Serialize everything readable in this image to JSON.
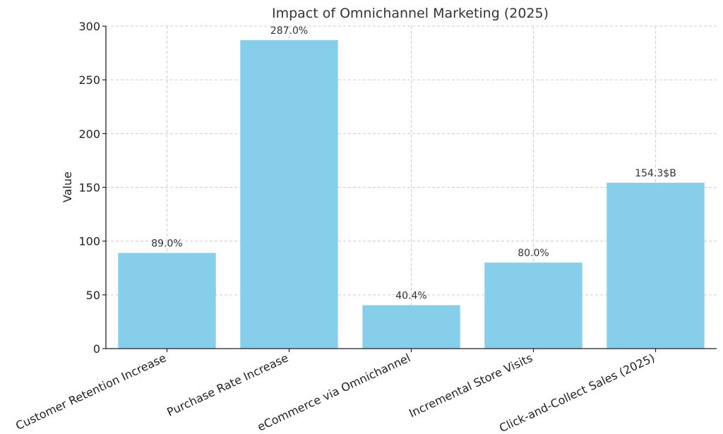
{
  "chart_data": {
    "type": "bar",
    "title": "Impact of Omnichannel Marketing (2025)",
    "xlabel": "",
    "ylabel": "Value",
    "ylim": [
      0,
      300
    ],
    "yticks": [
      0,
      50,
      100,
      150,
      200,
      250,
      300
    ],
    "grid": true,
    "categories": [
      "Customer Retention Increase",
      "Purchase Rate Increase",
      "eCommerce via Omnichannel",
      "Incremental Store Visits",
      "Click-and-Collect Sales (2025)"
    ],
    "values": [
      89.0,
      287.0,
      40.4,
      80.0,
      154.3
    ],
    "data_labels": [
      "89.0%",
      "287.0%",
      "40.4%",
      "80.0%",
      "154.3$B"
    ],
    "bar_color": "#87ceeb"
  }
}
